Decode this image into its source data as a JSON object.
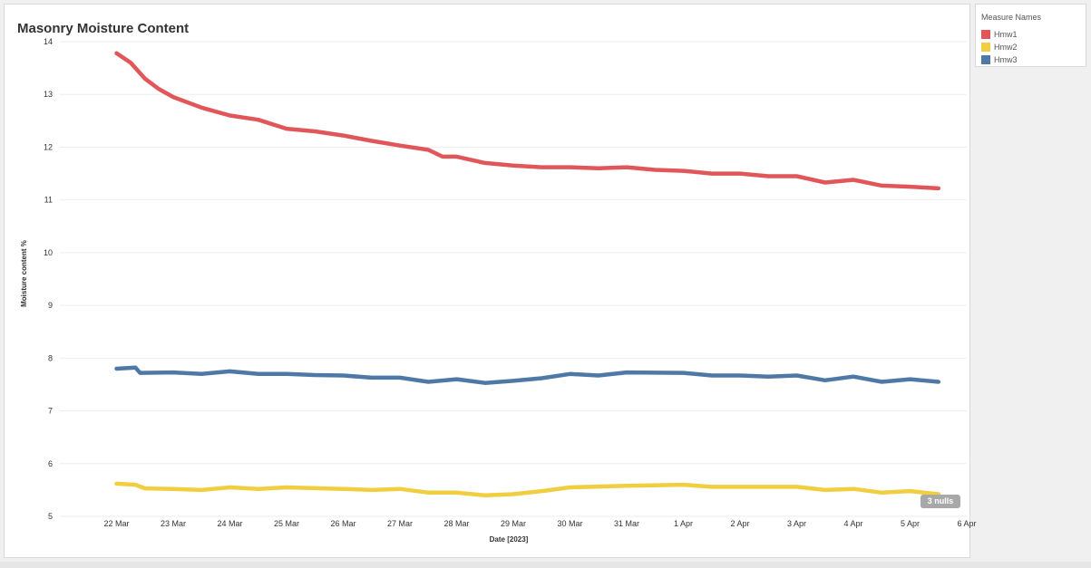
{
  "title": "Masonry Moisture Content",
  "legend": {
    "title": "Measure Names",
    "items": [
      {
        "label": "Hmw1",
        "color": "#e15759"
      },
      {
        "label": "Hmw2",
        "color": "#f1ce3f"
      },
      {
        "label": "Hmw3",
        "color": "#4e79a7"
      }
    ]
  },
  "nulls_badge": "3 nulls",
  "chart_data": {
    "type": "line",
    "title": "Masonry Moisture Content",
    "xlabel": "Date [2023]",
    "ylabel": "Moisture content %",
    "ylim": [
      5,
      14
    ],
    "xlim": [
      "2023-03-21",
      "2023-04-06"
    ],
    "x_ticks": [
      "22 Mar",
      "23 Mar",
      "24 Mar",
      "25 Mar",
      "26 Mar",
      "27 Mar",
      "28 Mar",
      "29 Mar",
      "30 Mar",
      "31 Mar",
      "1 Apr",
      "2 Apr",
      "3 Apr",
      "4 Apr",
      "5 Apr",
      "6 Apr"
    ],
    "y_ticks": [
      "5",
      "6",
      "7",
      "8",
      "9",
      "10",
      "11",
      "12",
      "13",
      "14"
    ],
    "grid": true,
    "legend_position": "right",
    "series": [
      {
        "name": "Hmw1",
        "color": "#e15759",
        "points": [
          [
            "2023-03-22 00:00",
            13.78
          ],
          [
            "2023-03-22 06:00",
            13.6
          ],
          [
            "2023-03-22 12:00",
            13.3
          ],
          [
            "2023-03-22 18:00",
            13.1
          ],
          [
            "2023-03-23 00:00",
            12.95
          ],
          [
            "2023-03-23 12:00",
            12.75
          ],
          [
            "2023-03-24 00:00",
            12.6
          ],
          [
            "2023-03-24 12:00",
            12.52
          ],
          [
            "2023-03-25 00:00",
            12.35
          ],
          [
            "2023-03-25 12:00",
            12.3
          ],
          [
            "2023-03-26 00:00",
            12.22
          ],
          [
            "2023-03-26 12:00",
            12.12
          ],
          [
            "2023-03-27 00:00",
            12.03
          ],
          [
            "2023-03-27 12:00",
            11.95
          ],
          [
            "2023-03-27 18:00",
            11.82
          ],
          [
            "2023-03-28 00:00",
            11.82
          ],
          [
            "2023-03-28 12:00",
            11.7
          ],
          [
            "2023-03-29 00:00",
            11.65
          ],
          [
            "2023-03-29 12:00",
            11.62
          ],
          [
            "2023-03-30 00:00",
            11.62
          ],
          [
            "2023-03-30 12:00",
            11.6
          ],
          [
            "2023-03-31 00:00",
            11.62
          ],
          [
            "2023-03-31 12:00",
            11.57
          ],
          [
            "2023-04-01 00:00",
            11.55
          ],
          [
            "2023-04-01 12:00",
            11.5
          ],
          [
            "2023-04-02 00:00",
            11.5
          ],
          [
            "2023-04-02 12:00",
            11.45
          ],
          [
            "2023-04-03 00:00",
            11.45
          ],
          [
            "2023-04-03 12:00",
            11.33
          ],
          [
            "2023-04-04 00:00",
            11.38
          ],
          [
            "2023-04-04 12:00",
            11.27
          ],
          [
            "2023-04-05 00:00",
            11.25
          ],
          [
            "2023-04-05 12:00",
            11.22
          ]
        ]
      },
      {
        "name": "Hmw2",
        "color": "#f1ce3f",
        "points": [
          [
            "2023-03-22 00:00",
            5.62
          ],
          [
            "2023-03-22 08:00",
            5.6
          ],
          [
            "2023-03-22 12:00",
            5.53
          ],
          [
            "2023-03-23 00:00",
            5.52
          ],
          [
            "2023-03-23 12:00",
            5.5
          ],
          [
            "2023-03-24 00:00",
            5.55
          ],
          [
            "2023-03-24 12:00",
            5.52
          ],
          [
            "2023-03-25 00:00",
            5.55
          ],
          [
            "2023-03-26 00:00",
            5.52
          ],
          [
            "2023-03-26 12:00",
            5.5
          ],
          [
            "2023-03-27 00:00",
            5.52
          ],
          [
            "2023-03-27 12:00",
            5.45
          ],
          [
            "2023-03-28 00:00",
            5.45
          ],
          [
            "2023-03-28 12:00",
            5.4
          ],
          [
            "2023-03-29 00:00",
            5.42
          ],
          [
            "2023-03-29 12:00",
            5.48
          ],
          [
            "2023-03-30 00:00",
            5.55
          ],
          [
            "2023-03-31 00:00",
            5.58
          ],
          [
            "2023-04-01 00:00",
            5.6
          ],
          [
            "2023-04-01 12:00",
            5.56
          ],
          [
            "2023-04-02 00:00",
            5.56
          ],
          [
            "2023-04-03 00:00",
            5.56
          ],
          [
            "2023-04-03 12:00",
            5.5
          ],
          [
            "2023-04-04 00:00",
            5.52
          ],
          [
            "2023-04-04 12:00",
            5.45
          ],
          [
            "2023-04-05 00:00",
            5.48
          ],
          [
            "2023-04-05 12:00",
            5.42
          ]
        ]
      },
      {
        "name": "Hmw3",
        "color": "#4e79a7",
        "points": [
          [
            "2023-03-22 00:00",
            7.8
          ],
          [
            "2023-03-22 08:00",
            7.82
          ],
          [
            "2023-03-22 10:00",
            7.72
          ],
          [
            "2023-03-23 00:00",
            7.73
          ],
          [
            "2023-03-23 12:00",
            7.7
          ],
          [
            "2023-03-24 00:00",
            7.75
          ],
          [
            "2023-03-24 12:00",
            7.7
          ],
          [
            "2023-03-25 00:00",
            7.7
          ],
          [
            "2023-03-25 12:00",
            7.68
          ],
          [
            "2023-03-26 00:00",
            7.67
          ],
          [
            "2023-03-26 12:00",
            7.63
          ],
          [
            "2023-03-27 00:00",
            7.63
          ],
          [
            "2023-03-27 12:00",
            7.55
          ],
          [
            "2023-03-28 00:00",
            7.6
          ],
          [
            "2023-03-28 12:00",
            7.53
          ],
          [
            "2023-03-29 00:00",
            7.57
          ],
          [
            "2023-03-29 12:00",
            7.62
          ],
          [
            "2023-03-30 00:00",
            7.7
          ],
          [
            "2023-03-30 12:00",
            7.67
          ],
          [
            "2023-03-31 00:00",
            7.73
          ],
          [
            "2023-04-01 00:00",
            7.72
          ],
          [
            "2023-04-01 12:00",
            7.67
          ],
          [
            "2023-04-02 00:00",
            7.67
          ],
          [
            "2023-04-02 12:00",
            7.65
          ],
          [
            "2023-04-03 00:00",
            7.67
          ],
          [
            "2023-04-03 12:00",
            7.58
          ],
          [
            "2023-04-04 00:00",
            7.65
          ],
          [
            "2023-04-04 12:00",
            7.55
          ],
          [
            "2023-04-05 00:00",
            7.6
          ],
          [
            "2023-04-05 12:00",
            7.55
          ]
        ]
      }
    ]
  }
}
